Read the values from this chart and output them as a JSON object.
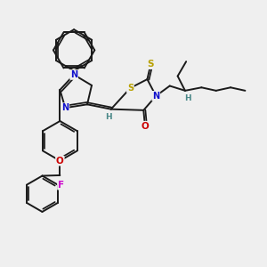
{
  "bg_color": "#efefef",
  "bond_color": "#1a1a1a",
  "bond_width": 1.4,
  "atom_colors": {
    "N": "#1010cc",
    "S": "#b8a000",
    "O": "#cc0000",
    "F": "#cc00cc",
    "H": "#4a8888",
    "C": "#1a1a1a"
  },
  "figsize": [
    3.0,
    3.0
  ],
  "dpi": 100
}
